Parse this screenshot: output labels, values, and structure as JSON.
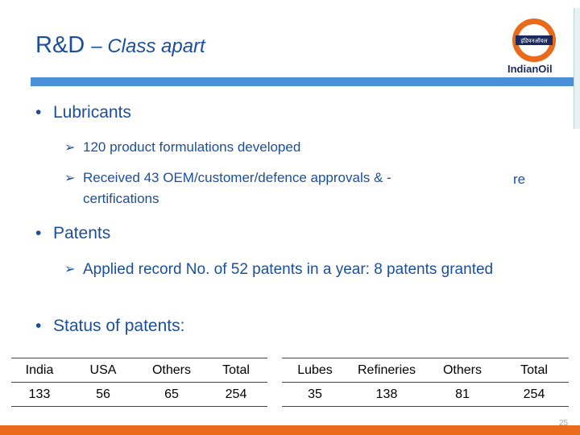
{
  "title": {
    "main": "R&D",
    "sub": "– Class apart"
  },
  "logo": {
    "text": "IndianOil",
    "emblem_text": "इंडियनऑयल"
  },
  "bullets": [
    {
      "text": "Lubricants",
      "subs": [
        "120 product formulations developed",
        "Received 43 OEM/customer/defence approvals & -certifications"
      ]
    },
    {
      "text": "Patents",
      "subs": [
        "Applied record No. of 52 patents in a year: 8 patents granted"
      ]
    },
    {
      "text": "Status of patents:"
    }
  ],
  "stray_text": "re",
  "table_left": {
    "headers": [
      "India",
      "USA",
      "Others",
      "Total"
    ],
    "values": [
      "133",
      "56",
      "65",
      "254"
    ]
  },
  "table_right": {
    "headers": [
      "Lubes",
      "Refineries",
      "Others",
      "Total"
    ],
    "values": [
      "35",
      "138",
      "81",
      "254"
    ]
  },
  "page_number": "25",
  "colors": {
    "title": "#1b4f9c",
    "bar": "#4a90d9",
    "footer": "#e86a1a"
  }
}
